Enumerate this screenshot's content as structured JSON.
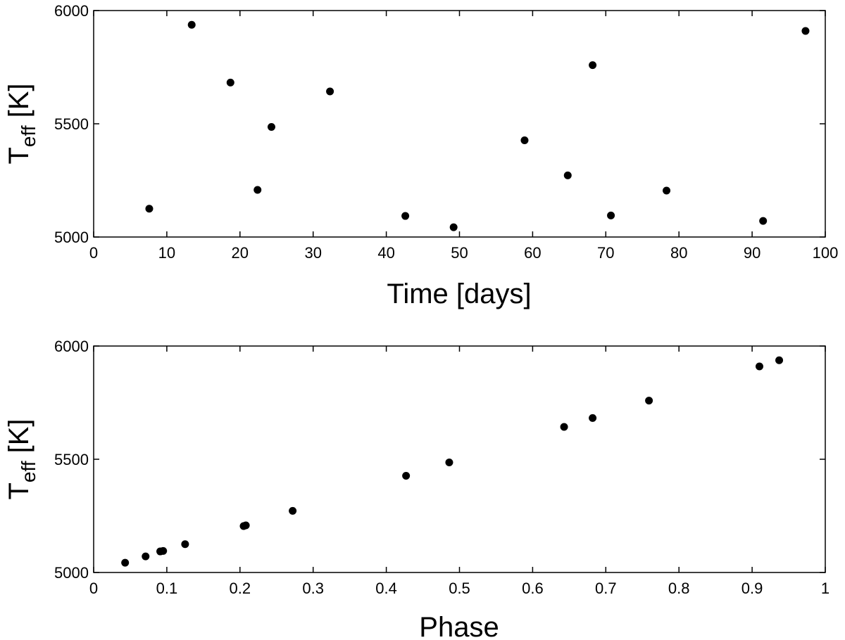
{
  "chart_data": [
    {
      "type": "scatter",
      "xlabel": "Time [days]",
      "ylabel": {
        "main": "T",
        "sub": "eff",
        "unit": " [K]"
      },
      "xlim": [
        0,
        100
      ],
      "ylim": [
        5000,
        6000
      ],
      "xticks": [
        0,
        10,
        20,
        30,
        40,
        50,
        60,
        70,
        80,
        90,
        100
      ],
      "xtick_labels": [
        "0",
        "10",
        "20",
        "30",
        "40",
        "50",
        "60",
        "70",
        "80",
        "90",
        "100"
      ],
      "yticks": [
        5000,
        5500,
        6000
      ],
      "ytick_labels": [
        "5000",
        "5500",
        "6000"
      ],
      "grid": false,
      "marker_color": "#000000",
      "series": [
        {
          "points": [
            {
              "x": 7.6,
              "y": 5125
            },
            {
              "x": 13.4,
              "y": 5937
            },
            {
              "x": 18.7,
              "y": 5682
            },
            {
              "x": 22.4,
              "y": 5208
            },
            {
              "x": 24.3,
              "y": 5486
            },
            {
              "x": 32.3,
              "y": 5643
            },
            {
              "x": 42.6,
              "y": 5093
            },
            {
              "x": 49.2,
              "y": 5043
            },
            {
              "x": 58.9,
              "y": 5427
            },
            {
              "x": 64.8,
              "y": 5272
            },
            {
              "x": 68.2,
              "y": 5759
            },
            {
              "x": 70.7,
              "y": 5095
            },
            {
              "x": 78.3,
              "y": 5205
            },
            {
              "x": 91.5,
              "y": 5071
            },
            {
              "x": 97.3,
              "y": 5910
            }
          ]
        }
      ]
    },
    {
      "type": "scatter",
      "xlabel": "Phase",
      "ylabel": {
        "main": "T",
        "sub": "eff",
        "unit": " [K]"
      },
      "xlim": [
        0,
        1
      ],
      "ylim": [
        5000,
        6000
      ],
      "xticks": [
        0,
        0.1,
        0.2,
        0.3,
        0.4,
        0.5,
        0.6,
        0.7,
        0.8,
        0.9,
        1
      ],
      "xtick_labels": [
        "0",
        "0.1",
        "0.2",
        "0.3",
        "0.4",
        "0.5",
        "0.6",
        "0.7",
        "0.8",
        "0.9",
        "1"
      ],
      "yticks": [
        5000,
        5500,
        6000
      ],
      "ytick_labels": [
        "5000",
        "5500",
        "6000"
      ],
      "grid": false,
      "marker_color": "#000000",
      "series": [
        {
          "points": [
            {
              "x": 0.043,
              "y": 5043
            },
            {
              "x": 0.071,
              "y": 5071
            },
            {
              "x": 0.091,
              "y": 5093
            },
            {
              "x": 0.095,
              "y": 5095
            },
            {
              "x": 0.125,
              "y": 5125
            },
            {
              "x": 0.205,
              "y": 5205
            },
            {
              "x": 0.208,
              "y": 5208
            },
            {
              "x": 0.272,
              "y": 5272
            },
            {
              "x": 0.427,
              "y": 5427
            },
            {
              "x": 0.486,
              "y": 5486
            },
            {
              "x": 0.643,
              "y": 5643
            },
            {
              "x": 0.682,
              "y": 5682
            },
            {
              "x": 0.759,
              "y": 5759
            },
            {
              "x": 0.91,
              "y": 5910
            },
            {
              "x": 0.937,
              "y": 5937
            }
          ]
        }
      ]
    }
  ]
}
